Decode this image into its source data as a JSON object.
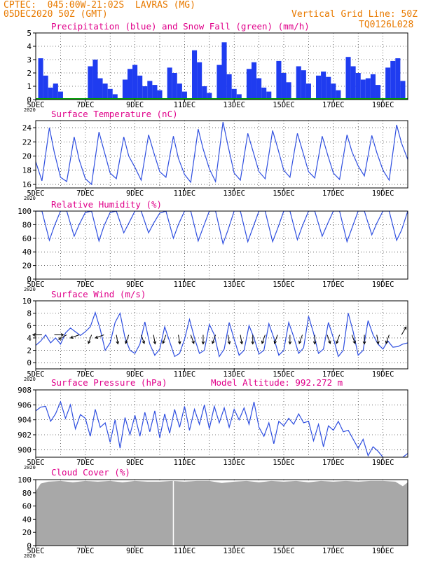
{
  "header": {
    "line1": "CPTEC:  045:00W-21:02S  LAVRAS (MG)",
    "line2": "05DEC2020 50Z (GMT)",
    "grid_note": "Vertical Grid Line: 50Z",
    "run_id": "TQ0126L028"
  },
  "x_axis": {
    "start": "05DEC2020 00Z",
    "end": "20DEC2020 00Z",
    "ticks": [
      "5DEC",
      "7DEC",
      "9DEC",
      "11DEC",
      "13DEC",
      "15DEC",
      "17DEC",
      "19DEC"
    ],
    "tick_days": [
      0,
      2,
      4,
      6,
      8,
      10,
      12,
      14
    ],
    "year_stub": "2020"
  },
  "colors": {
    "precip": "#1f3cf0",
    "snow": "#00a000",
    "line": "#2f4fe0",
    "cloud": "#a8a8a8",
    "orange": "#e87a00",
    "magenta": "#e0008a"
  },
  "chart_data": [
    {
      "id": "precip",
      "type": "bar",
      "title": "Precipitation (blue) and Snow Fall (green) (mm/h)",
      "ylim": [
        0,
        5
      ],
      "yticks": [
        0,
        1,
        2,
        3,
        4,
        5
      ],
      "series": [
        {
          "name": "Precipitation",
          "x_days": [
            0.2,
            0.4,
            0.6,
            0.8,
            1.0,
            2.2,
            2.4,
            2.6,
            2.8,
            3.0,
            3.2,
            3.6,
            3.8,
            4.0,
            4.2,
            4.4,
            4.6,
            4.8,
            5.0,
            5.4,
            5.6,
            5.8,
            6.0,
            6.4,
            6.6,
            6.8,
            7.0,
            7.4,
            7.6,
            7.8,
            8.0,
            8.2,
            8.6,
            8.8,
            9.0,
            9.2,
            9.4,
            9.8,
            10.0,
            10.2,
            10.6,
            10.8,
            11.0,
            11.4,
            11.6,
            11.8,
            12.0,
            12.2,
            12.6,
            12.8,
            13.0,
            13.2,
            13.4,
            13.6,
            13.8,
            14.2,
            14.4,
            14.6,
            14.8
          ],
          "values": [
            3.1,
            1.8,
            0.9,
            1.2,
            0.6,
            2.5,
            3.0,
            1.6,
            1.2,
            0.8,
            0.4,
            1.5,
            2.3,
            2.6,
            1.8,
            1.0,
            1.4,
            1.1,
            0.7,
            2.4,
            2.0,
            1.2,
            0.6,
            3.7,
            2.8,
            1.0,
            0.5,
            2.6,
            4.3,
            1.9,
            0.8,
            0.4,
            2.3,
            2.8,
            1.6,
            0.9,
            0.6,
            2.9,
            2.0,
            1.3,
            2.5,
            2.2,
            1.2,
            1.8,
            2.1,
            1.7,
            1.2,
            0.7,
            3.2,
            2.5,
            2.0,
            1.5,
            1.6,
            1.9,
            1.1,
            2.4,
            2.9,
            3.1,
            1.4
          ]
        },
        {
          "name": "Snow Fall",
          "x_days": [
            0,
            15
          ],
          "values": [
            0,
            0
          ]
        }
      ]
    },
    {
      "id": "temp",
      "type": "line",
      "title": "Surface Temperature (nC)",
      "ylim": [
        15.5,
        25
      ],
      "yticks": [
        16,
        18,
        20,
        22,
        24
      ],
      "series": [
        {
          "name": "Temperature",
          "x_days": [
            0.0,
            0.25,
            0.55,
            0.75,
            1.0,
            1.25,
            1.55,
            1.75,
            2.0,
            2.25,
            2.55,
            2.75,
            3.0,
            3.25,
            3.55,
            3.75,
            4.0,
            4.25,
            4.55,
            4.75,
            5.0,
            5.25,
            5.55,
            5.75,
            6.0,
            6.25,
            6.55,
            6.75,
            7.0,
            7.25,
            7.55,
            7.75,
            8.0,
            8.25,
            8.55,
            8.75,
            9.0,
            9.25,
            9.55,
            9.75,
            10.0,
            10.25,
            10.55,
            10.75,
            11.0,
            11.25,
            11.55,
            11.75,
            12.0,
            12.25,
            12.55,
            12.75,
            13.0,
            13.25,
            13.55,
            13.75,
            14.0,
            14.25,
            14.55,
            14.75,
            15.0
          ],
          "values": [
            19.2,
            16.5,
            24.0,
            20.5,
            17.0,
            16.4,
            22.7,
            19.5,
            16.8,
            16.0,
            23.4,
            20.8,
            17.6,
            16.8,
            22.7,
            20.0,
            18.4,
            16.6,
            23.0,
            20.6,
            17.8,
            17.0,
            22.8,
            19.7,
            17.4,
            16.3,
            23.8,
            21.0,
            18.2,
            16.4,
            24.8,
            21.5,
            17.6,
            16.6,
            23.2,
            20.8,
            17.8,
            16.8,
            23.6,
            21.2,
            18.0,
            17.0,
            23.2,
            20.8,
            17.8,
            16.9,
            22.8,
            20.4,
            17.6,
            16.7,
            23.0,
            20.6,
            18.6,
            17.2,
            22.9,
            20.5,
            18.0,
            16.6,
            24.4,
            21.8,
            19.5
          ]
        }
      ]
    },
    {
      "id": "rh",
      "type": "line",
      "title": "Relative Humidity (%)",
      "ylim": [
        0,
        100
      ],
      "yticks": [
        0,
        20,
        40,
        60,
        80,
        100
      ],
      "series": [
        {
          "name": "Humidity",
          "x_days": [
            0.0,
            0.25,
            0.55,
            0.75,
            1.0,
            1.25,
            1.55,
            1.75,
            2.0,
            2.25,
            2.55,
            2.75,
            3.0,
            3.25,
            3.55,
            3.75,
            4.0,
            4.25,
            4.55,
            4.75,
            5.0,
            5.25,
            5.55,
            5.75,
            6.0,
            6.25,
            6.55,
            6.75,
            7.0,
            7.25,
            7.55,
            7.75,
            8.0,
            8.25,
            8.55,
            8.75,
            9.0,
            9.25,
            9.55,
            9.75,
            10.0,
            10.25,
            10.55,
            10.75,
            11.0,
            11.25,
            11.55,
            11.75,
            12.0,
            12.25,
            12.55,
            12.75,
            13.0,
            13.25,
            13.55,
            13.75,
            14.0,
            14.25,
            14.55,
            14.75,
            15.0
          ],
          "values": [
            100,
            100,
            57,
            78,
            100,
            100,
            63,
            80,
            98,
            100,
            56,
            78,
            98,
            100,
            68,
            82,
            100,
            100,
            68,
            82,
            97,
            100,
            60,
            80,
            100,
            100,
            56,
            76,
            100,
            100,
            52,
            72,
            100,
            100,
            55,
            75,
            100,
            100,
            55,
            74,
            100,
            100,
            58,
            78,
            100,
            100,
            63,
            80,
            100,
            100,
            55,
            75,
            100,
            100,
            65,
            82,
            100,
            100,
            57,
            72,
            100
          ]
        }
      ]
    },
    {
      "id": "wind",
      "type": "line",
      "title": "Surface Wind (m/s)",
      "ylim": [
        -1,
        10
      ],
      "yticks": [
        0,
        2,
        4,
        6,
        8,
        10
      ],
      "series": [
        {
          "name": "Wind speed",
          "x_days": [
            0.0,
            0.2,
            0.4,
            0.6,
            0.8,
            1.0,
            1.2,
            1.4,
            1.6,
            1.8,
            2.0,
            2.2,
            2.4,
            2.6,
            2.8,
            3.0,
            3.2,
            3.4,
            3.6,
            3.8,
            4.0,
            4.2,
            4.4,
            4.6,
            4.8,
            5.0,
            5.2,
            5.4,
            5.6,
            5.8,
            6.0,
            6.2,
            6.4,
            6.6,
            6.8,
            7.0,
            7.2,
            7.4,
            7.6,
            7.8,
            8.0,
            8.2,
            8.4,
            8.6,
            8.8,
            9.0,
            9.2,
            9.4,
            9.6,
            9.8,
            10.0,
            10.2,
            10.4,
            10.6,
            10.8,
            11.0,
            11.2,
            11.4,
            11.6,
            11.8,
            12.0,
            12.2,
            12.4,
            12.6,
            12.8,
            13.0,
            13.2,
            13.4,
            13.6,
            13.8,
            14.0,
            14.2,
            14.4,
            14.6,
            14.8,
            15.0
          ],
          "values": [
            2.8,
            3.5,
            4.5,
            3.2,
            4.0,
            3.0,
            4.8,
            5.6,
            5.0,
            4.4,
            5.0,
            5.8,
            8.1,
            5.4,
            2.0,
            3.2,
            6.5,
            8.0,
            4.0,
            2.0,
            1.5,
            3.0,
            6.6,
            3.0,
            1.2,
            2.2,
            5.8,
            3.4,
            1.0,
            1.5,
            3.8,
            7.0,
            4.0,
            1.5,
            2.0,
            6.2,
            4.5,
            1.0,
            2.2,
            6.5,
            3.8,
            1.2,
            2.0,
            6.0,
            4.0,
            1.4,
            2.0,
            6.3,
            4.0,
            1.2,
            2.0,
            6.5,
            4.2,
            1.5,
            2.4,
            7.5,
            4.8,
            1.5,
            2.2,
            6.5,
            4.0,
            1.0,
            2.0,
            8.0,
            5.0,
            1.2,
            2.0,
            6.8,
            4.5,
            3.0,
            2.2,
            3.5,
            2.5,
            2.6,
            3.0,
            3.2
          ]
        }
      ],
      "arrows": {
        "x_days": [
          0.25,
          0.75,
          1.25,
          1.75,
          2.25,
          2.75,
          3.25,
          3.75,
          4.25,
          4.75,
          5.25,
          5.75,
          6.25,
          6.75,
          7.25,
          7.75,
          8.25,
          8.75,
          9.25,
          9.75,
          10.25,
          10.75,
          11.25,
          11.75,
          12.25,
          12.75,
          13.25,
          13.75,
          14.25,
          14.75
        ],
        "angles_deg": [
          180,
          0,
          210,
          200,
          250,
          200,
          280,
          250,
          290,
          280,
          250,
          280,
          290,
          270,
          250,
          280,
          280,
          270,
          250,
          250,
          270,
          250,
          270,
          290,
          250,
          290,
          270,
          280,
          250,
          60
        ]
      }
    },
    {
      "id": "pressure",
      "type": "line",
      "title": "Surface Pressure (hPa)",
      "annotation": "Model Altitude: 992.272 m",
      "ylim": [
        899,
        908
      ],
      "yticks": [
        900,
        902,
        904,
        906,
        908
      ],
      "series": [
        {
          "name": "Pressure",
          "x_days": [
            0.0,
            0.2,
            0.4,
            0.6,
            0.8,
            1.0,
            1.2,
            1.4,
            1.6,
            1.8,
            2.0,
            2.2,
            2.4,
            2.6,
            2.8,
            3.0,
            3.2,
            3.4,
            3.6,
            3.8,
            4.0,
            4.2,
            4.4,
            4.6,
            4.8,
            5.0,
            5.2,
            5.4,
            5.6,
            5.8,
            6.0,
            6.2,
            6.4,
            6.6,
            6.8,
            7.0,
            7.2,
            7.4,
            7.6,
            7.8,
            8.0,
            8.2,
            8.4,
            8.6,
            8.8,
            9.0,
            9.2,
            9.4,
            9.6,
            9.8,
            10.0,
            10.2,
            10.4,
            10.6,
            10.8,
            11.0,
            11.2,
            11.4,
            11.6,
            11.8,
            12.0,
            12.2,
            12.4,
            12.6,
            12.8,
            13.0,
            13.2,
            13.4,
            13.6,
            13.8,
            14.0,
            14.2,
            14.4,
            14.6,
            14.8,
            15.0
          ],
          "values": [
            905.2,
            905.7,
            905.8,
            903.8,
            904.8,
            906.4,
            904.2,
            906.0,
            902.8,
            904.7,
            904.2,
            901.8,
            905.4,
            903.0,
            903.6,
            901.0,
            904.0,
            900.2,
            904.3,
            902.0,
            904.6,
            901.8,
            905.0,
            902.4,
            905.2,
            901.6,
            904.8,
            902.2,
            905.4,
            903.0,
            905.8,
            902.6,
            905.4,
            903.4,
            906.0,
            902.8,
            905.8,
            903.6,
            905.6,
            903.0,
            905.4,
            904.0,
            905.6,
            903.4,
            906.4,
            903.0,
            901.8,
            903.6,
            900.8,
            903.8,
            903.2,
            904.2,
            903.4,
            904.8,
            903.6,
            903.8,
            901.2,
            903.4,
            900.4,
            903.2,
            902.6,
            903.8,
            902.4,
            902.6,
            901.4,
            900.2,
            901.4,
            899.2,
            900.4,
            899.8,
            899.0,
            898.5,
            898.0,
            898.5,
            899.0,
            899.5
          ]
        }
      ]
    },
    {
      "id": "cloud",
      "type": "area",
      "title": "Cloud Cover (%)",
      "ylim": [
        0,
        100
      ],
      "yticks": [
        0,
        20,
        40,
        60,
        80,
        100
      ],
      "series": [
        {
          "name": "Cloud cover",
          "x_days": [
            0.0,
            0.1,
            0.2,
            0.5,
            1.0,
            1.5,
            2.0,
            2.5,
            3.0,
            3.5,
            4.0,
            4.5,
            5.0,
            5.5,
            6.0,
            6.5,
            7.0,
            7.5,
            8.0,
            8.5,
            9.0,
            9.5,
            10.0,
            10.5,
            11.0,
            11.5,
            12.0,
            12.5,
            13.0,
            13.5,
            14.0,
            14.5,
            14.8,
            15.0
          ],
          "values": [
            82,
            88,
            94,
            97,
            98,
            96,
            98,
            97,
            98,
            96,
            98,
            97,
            97,
            98,
            97,
            98,
            98,
            95,
            97,
            98,
            96,
            98,
            97,
            98,
            96,
            98,
            97,
            98,
            97,
            98,
            98,
            97,
            90,
            96
          ]
        }
      ],
      "gaps_days": [
        5.55
      ]
    }
  ]
}
